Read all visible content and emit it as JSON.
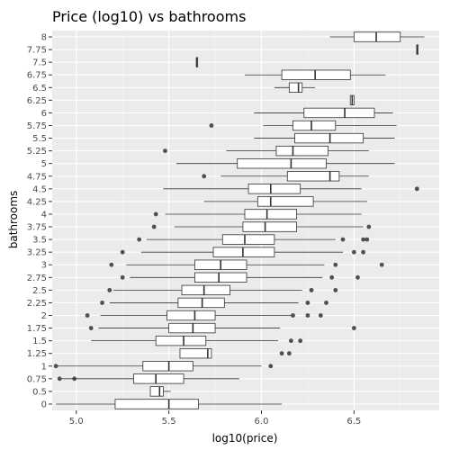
{
  "chart_data": {
    "type": "boxplot",
    "orientation": "horizontal",
    "title": "Price (log10) vs bathrooms",
    "xlabel": "log10(price)",
    "ylabel": "bathrooms",
    "xlim": [
      4.87,
      6.96
    ],
    "x_ticks": [
      5.0,
      5.5,
      6.0,
      6.5
    ],
    "x_tick_labels": [
      "5.0",
      "5.5",
      "6.0",
      "6.5"
    ],
    "grid": true,
    "legend": "none",
    "categories": [
      "0",
      "0.5",
      "0.75",
      "1",
      "1.25",
      "1.5",
      "1.75",
      "2",
      "2.25",
      "2.5",
      "2.75",
      "3",
      "3.25",
      "3.5",
      "3.75",
      "4",
      "4.25",
      "4.5",
      "4.75",
      "5",
      "5.25",
      "5.5",
      "5.75",
      "6",
      "6.25",
      "6.5",
      "6.75",
      "7.5",
      "7.75",
      "8"
    ],
    "boxes": [
      {
        "bathrooms": "0",
        "whisker_low": 4.89,
        "q1": 5.21,
        "median": 5.5,
        "q3": 5.66,
        "whisker_high": 6.11,
        "outliers": []
      },
      {
        "bathrooms": "0.5",
        "whisker_low": 5.4,
        "q1": 5.4,
        "median": 5.45,
        "q3": 5.47,
        "whisker_high": 5.51,
        "outliers": []
      },
      {
        "bathrooms": "0.75",
        "whisker_low": 4.92,
        "q1": 5.31,
        "median": 5.43,
        "q3": 5.58,
        "whisker_high": 5.88,
        "outliers": [
          4.91,
          4.99
        ]
      },
      {
        "bathrooms": "1",
        "whisker_low": 4.9,
        "q1": 5.36,
        "median": 5.5,
        "q3": 5.63,
        "whisker_high": 6.0,
        "outliers": [
          4.89,
          6.05
        ]
      },
      {
        "bathrooms": "1.25",
        "whisker_low": 5.56,
        "q1": 5.56,
        "median": 5.71,
        "q3": 5.73,
        "whisker_high": 5.73,
        "outliers": [
          6.11,
          6.15
        ]
      },
      {
        "bathrooms": "1.5",
        "whisker_low": 5.08,
        "q1": 5.43,
        "median": 5.58,
        "q3": 5.7,
        "whisker_high": 6.09,
        "outliers": [
          6.16,
          6.21
        ]
      },
      {
        "bathrooms": "1.75",
        "whisker_low": 5.12,
        "q1": 5.5,
        "median": 5.63,
        "q3": 5.75,
        "whisker_high": 6.1,
        "outliers": [
          5.08,
          6.5
        ]
      },
      {
        "bathrooms": "2",
        "whisker_low": 5.13,
        "q1": 5.49,
        "median": 5.64,
        "q3": 5.75,
        "whisker_high": 6.16,
        "outliers": [
          5.06,
          6.17,
          6.25,
          6.32
        ]
      },
      {
        "bathrooms": "2.25",
        "whisker_low": 5.18,
        "q1": 5.55,
        "median": 5.68,
        "q3": 5.8,
        "whisker_high": 6.2,
        "outliers": [
          5.14,
          6.25,
          6.35
        ]
      },
      {
        "bathrooms": "2.5",
        "whisker_low": 5.2,
        "q1": 5.57,
        "median": 5.69,
        "q3": 5.83,
        "whisker_high": 6.22,
        "outliers": [
          5.18,
          6.27,
          6.4
        ]
      },
      {
        "bathrooms": "2.75",
        "whisker_low": 5.29,
        "q1": 5.64,
        "median": 5.77,
        "q3": 5.92,
        "whisker_high": 6.33,
        "outliers": [
          5.25,
          6.38,
          6.52
        ]
      },
      {
        "bathrooms": "3",
        "whisker_low": 5.27,
        "q1": 5.64,
        "median": 5.78,
        "q3": 5.92,
        "whisker_high": 6.34,
        "outliers": [
          5.19,
          6.4,
          6.65
        ]
      },
      {
        "bathrooms": "3.25",
        "whisker_low": 5.35,
        "q1": 5.74,
        "median": 5.9,
        "q3": 6.07,
        "whisker_high": 6.44,
        "outliers": [
          5.25,
          6.5,
          6.55
        ]
      },
      {
        "bathrooms": "3.5",
        "whisker_low": 5.38,
        "q1": 5.79,
        "median": 5.91,
        "q3": 6.07,
        "whisker_high": 6.4,
        "outliers": [
          5.34,
          6.44,
          6.55,
          6.57
        ]
      },
      {
        "bathrooms": "3.75",
        "whisker_low": 5.53,
        "q1": 5.9,
        "median": 6.02,
        "q3": 6.19,
        "whisker_high": 6.55,
        "outliers": [
          5.42,
          6.58
        ]
      },
      {
        "bathrooms": "4",
        "whisker_low": 5.48,
        "q1": 5.91,
        "median": 6.03,
        "q3": 6.19,
        "whisker_high": 6.54,
        "outliers": [
          5.43
        ]
      },
      {
        "bathrooms": "4.25",
        "whisker_low": 5.69,
        "q1": 5.98,
        "median": 6.05,
        "q3": 6.28,
        "whisker_high": 6.57,
        "outliers": []
      },
      {
        "bathrooms": "4.5",
        "whisker_low": 5.47,
        "q1": 5.93,
        "median": 6.05,
        "q3": 6.21,
        "whisker_high": 6.54,
        "outliers": [
          6.84
        ]
      },
      {
        "bathrooms": "4.75",
        "whisker_low": 5.78,
        "q1": 6.14,
        "median": 6.37,
        "q3": 6.42,
        "whisker_high": 6.58,
        "outliers": [
          5.69
        ]
      },
      {
        "bathrooms": "5",
        "whisker_low": 5.54,
        "q1": 5.87,
        "median": 6.16,
        "q3": 6.35,
        "whisker_high": 6.72,
        "outliers": []
      },
      {
        "bathrooms": "5.25",
        "whisker_low": 5.81,
        "q1": 6.08,
        "median": 6.17,
        "q3": 6.36,
        "whisker_high": 6.58,
        "outliers": [
          5.48
        ]
      },
      {
        "bathrooms": "5.5",
        "whisker_low": 5.96,
        "q1": 6.18,
        "median": 6.37,
        "q3": 6.55,
        "whisker_high": 6.72,
        "outliers": []
      },
      {
        "bathrooms": "5.75",
        "whisker_low": 6.01,
        "q1": 6.17,
        "median": 6.27,
        "q3": 6.4,
        "whisker_high": 6.73,
        "outliers": [
          5.73
        ]
      },
      {
        "bathrooms": "6",
        "whisker_low": 5.96,
        "q1": 6.23,
        "median": 6.45,
        "q3": 6.61,
        "whisker_high": 6.71,
        "outliers": []
      },
      {
        "bathrooms": "6.25",
        "whisker_low": 6.48,
        "q1": 6.48,
        "median": 6.49,
        "q3": 6.5,
        "whisker_high": 6.5,
        "outliers": []
      },
      {
        "bathrooms": "6.5",
        "whisker_low": 6.07,
        "q1": 6.15,
        "median": 6.2,
        "q3": 6.22,
        "whisker_high": 6.29,
        "outliers": []
      },
      {
        "bathrooms": "6.75",
        "whisker_low": 5.91,
        "q1": 6.11,
        "median": 6.29,
        "q3": 6.48,
        "whisker_high": 6.67,
        "outliers": []
      },
      {
        "bathrooms": "7.5",
        "whisker_low": 5.65,
        "q1": 5.65,
        "median": 5.65,
        "q3": 5.65,
        "whisker_high": 5.65,
        "outliers": []
      },
      {
        "bathrooms": "7.75",
        "whisker_low": 6.84,
        "q1": 6.84,
        "median": 6.84,
        "q3": 6.84,
        "whisker_high": 6.84,
        "outliers": []
      },
      {
        "bathrooms": "8",
        "whisker_low": 6.37,
        "q1": 6.5,
        "median": 6.62,
        "q3": 6.75,
        "whisker_high": 6.88,
        "outliers": []
      }
    ]
  },
  "colors": {
    "panel_background": "#ebebeb",
    "grid_major": "#ffffff",
    "grid_minor": "#f5f5f5",
    "box_fill": "#ffffff",
    "box_line": "#333333",
    "outlier": "#333333",
    "tick_text": "#4d4d4d"
  }
}
